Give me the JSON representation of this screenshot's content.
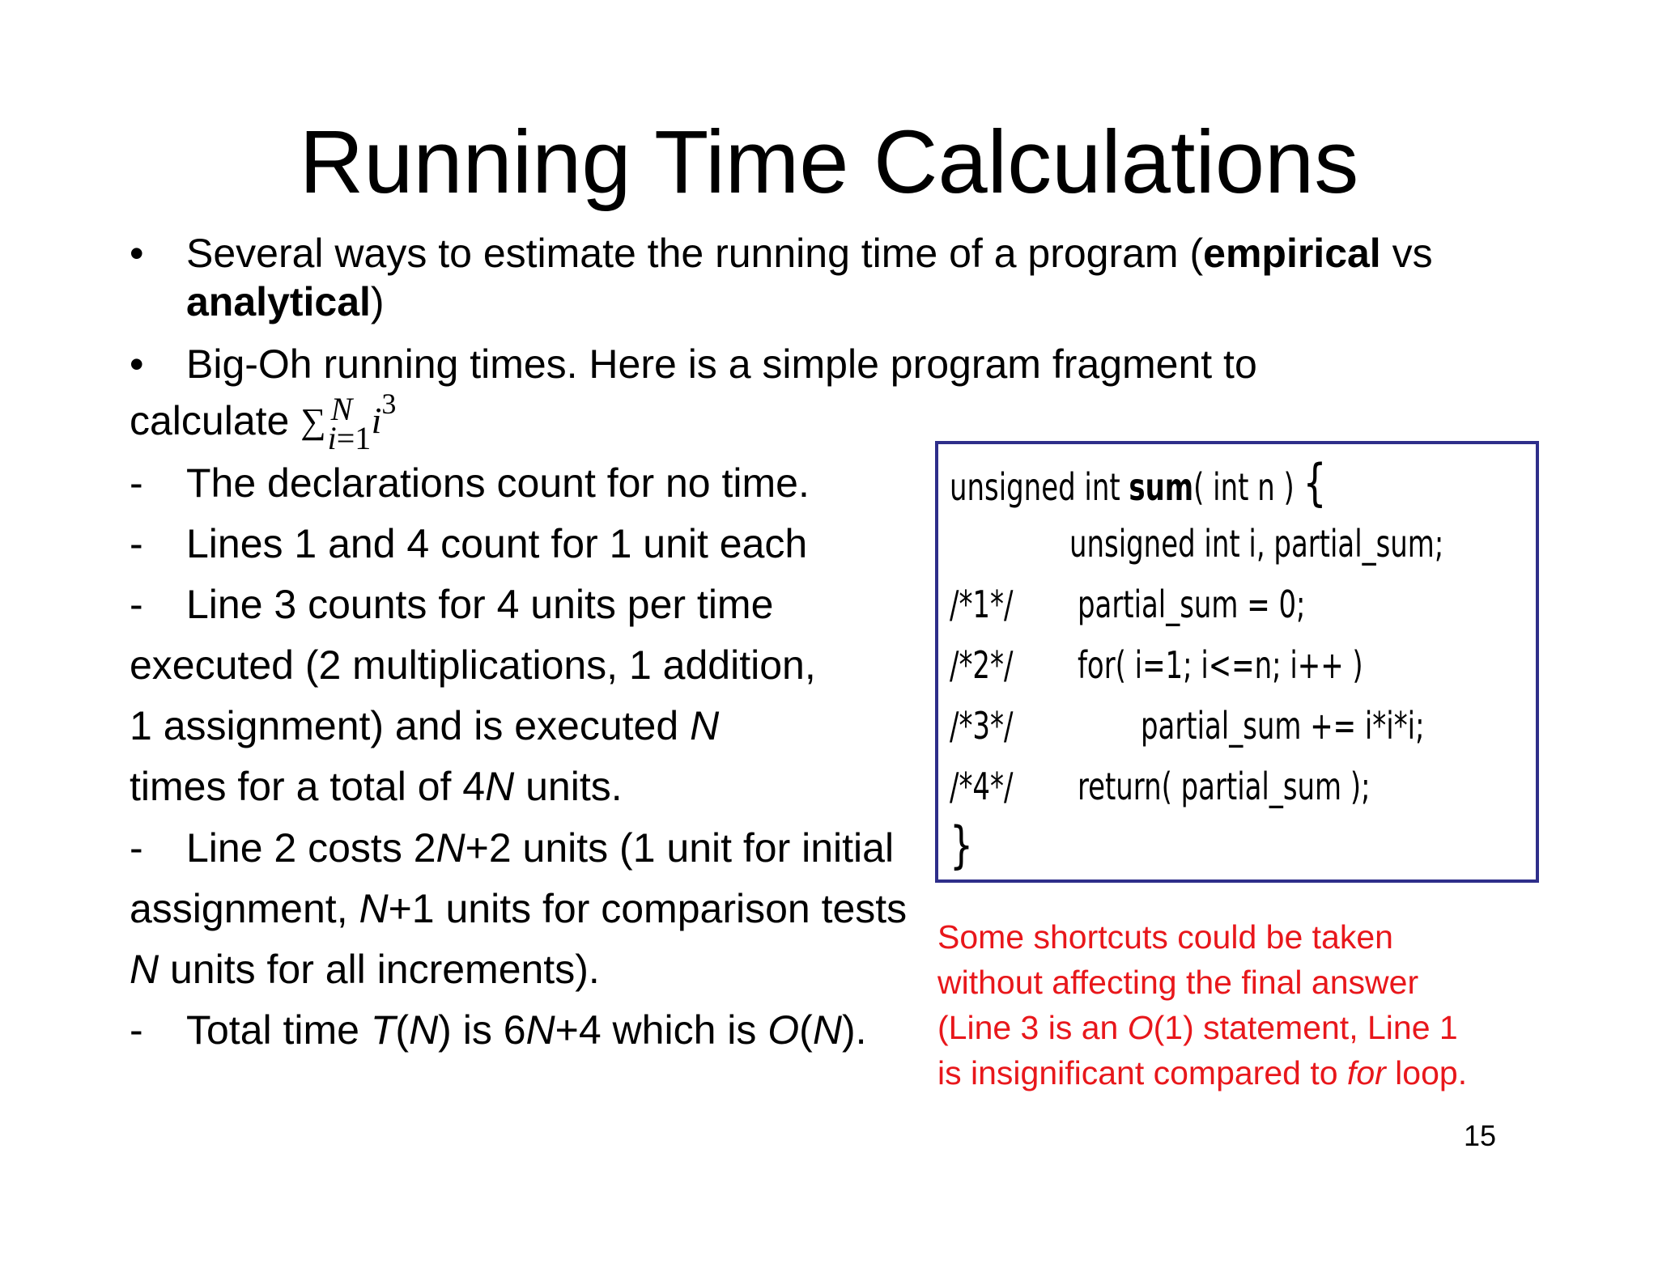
{
  "title": "Running Time Calculations",
  "bullets": [
    {
      "marker": "•",
      "line1_pre": "Several ways to estimate the running time of a program (",
      "line1_bold": "empirical",
      "line1_post": " vs",
      "line2_bold": "analytical",
      "line2_post": ")"
    },
    {
      "marker": "•",
      "line1": "Big-Oh running times. Here is a simple program fragment to",
      "line2_pre": "calculate ",
      "math_sigma": "∑",
      "math_upper": "N",
      "math_lower_var": "i",
      "math_lower_rest": "=1",
      "math_var": "i",
      "math_exp": "3"
    }
  ],
  "dash_items": {
    "marker": "-",
    "item1": "The declarations count for no time.",
    "item2": "Lines 1 and 4 count for 1 unit each",
    "item3_l1": "Line 3 counts for 4 units per time",
    "item3_l2": "executed (2 multiplications, 1 addition,",
    "item3_l3_pre": "1 assignment) and is executed ",
    "item3_l3_n": "N",
    "item3_l4_pre": "times for a total of 4",
    "item3_l4_n": "N",
    "item3_l4_post": " units.",
    "item4_l1_pre": "Line 2 costs 2",
    "item4_l1_n": "N",
    "item4_l1_post": "+2 units (1 unit for initial",
    "item4_l2_pre": "assignment, ",
    "item4_l2_n": "N",
    "item4_l2_post": "+1 units for comparison tests",
    "item4_l3_n": "N",
    "item4_l3_post": " units for all increments).",
    "item5_pre": "Total time ",
    "item5_t": "T",
    "item5_p1": "(",
    "item5_n1": "N",
    "item5_p2": ") is 6",
    "item5_n2": "N",
    "item5_p3": "+4 which is ",
    "item5_o": "O",
    "item5_p4": "(",
    "item5_n3": "N",
    "item5_p5": ")."
  },
  "code": {
    "line0_pre": "unsigned int  ",
    "line0_bold": "sum",
    "line0_post": "( int n ) ",
    "line0_brace": "{",
    "line_decl": "unsigned int i, partial_sum;",
    "line1_label": "/*1*/",
    "line1_code": "partial_sum = 0;",
    "line2_label": "/*2*/",
    "line2_code": "for( i=1; i<=n; i++ )",
    "line3_label": "/*3*/",
    "line3_code": "partial_sum += i*i*i;",
    "line4_label": "/*4*/",
    "line4_code": "return( partial_sum );",
    "closing_brace": "}",
    "border_color": "#2e2e8a"
  },
  "note": {
    "l1": "Some shortcuts could be taken",
    "l2": "without affecting the final answer",
    "l3_pre": "(Line 3 is an ",
    "l3_o": "O",
    "l3_post": "(1) statement, Line 1",
    "l4_pre": "is insignificant compared to ",
    "l4_for": "for",
    "l4_post": " loop.",
    "color": "#e8171b"
  },
  "page_number": "15"
}
